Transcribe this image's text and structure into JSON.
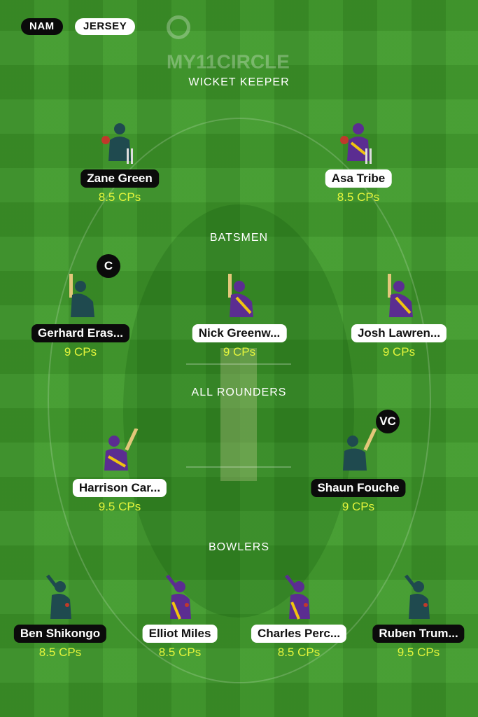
{
  "header": {
    "team_a": "NAM",
    "team_b": "JERSEY",
    "logo_text": "MY11CIRCLE"
  },
  "sections": {
    "wicket_keeper": "WICKET KEEPER",
    "batsmen": "BATSMEN",
    "all_rounders": "ALL ROUNDERS",
    "bowlers": "BOWLERS"
  },
  "colors": {
    "nam_jersey": "#1f4a4f",
    "jersey_jersey": "#5b2d91",
    "credit_text": "#e4f53c"
  },
  "players": [
    {
      "name": "Zane Green",
      "cps": "8.5 CPs",
      "team": "nam",
      "role": "keeper-icon"
    },
    {
      "name": "Asa Tribe",
      "cps": "8.5 CPs",
      "team": "jersey",
      "role": "keeper-icon"
    },
    {
      "name": "Gerhard Eras...",
      "cps": "9 CPs",
      "team": "nam",
      "role": "batsman-icon",
      "badge": "C"
    },
    {
      "name": "Nick Greenw...",
      "cps": "9 CPs",
      "team": "jersey",
      "role": "batsman-icon"
    },
    {
      "name": "Josh Lawren...",
      "cps": "9 CPs",
      "team": "jersey",
      "role": "batsman-icon"
    },
    {
      "name": "Harrison Car...",
      "cps": "9.5 CPs",
      "team": "jersey",
      "role": "allrounder-icon"
    },
    {
      "name": "Shaun Fouche",
      "cps": "9 CPs",
      "team": "nam",
      "role": "allrounder-icon",
      "badge": "VC"
    },
    {
      "name": "Ben Shikongo",
      "cps": "8.5 CPs",
      "team": "nam",
      "role": "bowler-icon"
    },
    {
      "name": "Elliot Miles",
      "cps": "8.5 CPs",
      "team": "jersey",
      "role": "bowler-icon"
    },
    {
      "name": "Charles Perc...",
      "cps": "8.5 CPs",
      "team": "jersey",
      "role": "bowler-icon"
    },
    {
      "name": "Ruben Trum...",
      "cps": "9.5 CPs",
      "team": "nam",
      "role": "bowler-icon"
    }
  ]
}
